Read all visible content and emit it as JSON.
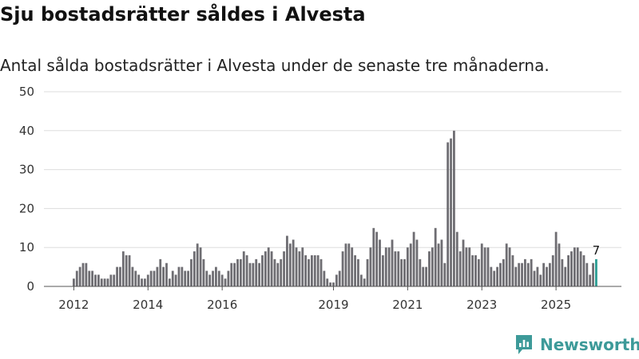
{
  "header": {
    "title": "Sju bostadsrätter såldes i Alvesta",
    "subtitle": "Antal sålda bostadsrätter i Alvesta under de senaste tre månaderna."
  },
  "brand": {
    "name": "Newsworthy",
    "color": "#3d9a99"
  },
  "colors": {
    "bar": "#6e6d72",
    "highlight": "#2a9d93",
    "grid": "#dddddd",
    "axis": "#555555"
  },
  "chart_data": {
    "type": "bar",
    "title": "Sju bostadsrätter såldes i Alvesta",
    "subtitle": "Antal sålda bostadsrätter i Alvesta under de senaste tre månaderna.",
    "xlabel": "",
    "ylabel": "",
    "ylim": [
      0,
      50
    ],
    "yticks": [
      0,
      10,
      20,
      30,
      40,
      50
    ],
    "grid": true,
    "start": "2012-01",
    "interval": "month",
    "xtick_labels": [
      {
        "label": "2012",
        "index": 0
      },
      {
        "label": "2014",
        "index": 24
      },
      {
        "label": "2016",
        "index": 48
      },
      {
        "label": "2019",
        "index": 84
      },
      {
        "label": "2021",
        "index": 108
      },
      {
        "label": "2023",
        "index": 132
      },
      {
        "label": "2025",
        "index": 156
      }
    ],
    "values": [
      2,
      4,
      5,
      6,
      6,
      4,
      4,
      3,
      3,
      2,
      2,
      2,
      3,
      3,
      5,
      5,
      9,
      8,
      8,
      5,
      4,
      3,
      2,
      2,
      3,
      4,
      4,
      5,
      7,
      5,
      6,
      2,
      4,
      3,
      5,
      5,
      4,
      4,
      7,
      9,
      11,
      10,
      7,
      4,
      3,
      4,
      5,
      4,
      3,
      2,
      4,
      6,
      6,
      7,
      7,
      9,
      8,
      6,
      6,
      7,
      6,
      8,
      9,
      10,
      9,
      7,
      6,
      7,
      9,
      13,
      11,
      12,
      10,
      9,
      10,
      8,
      7,
      8,
      8,
      8,
      7,
      4,
      2,
      1,
      1,
      3,
      4,
      9,
      11,
      11,
      10,
      8,
      7,
      3,
      2,
      7,
      10,
      15,
      14,
      12,
      8,
      10,
      10,
      12,
      9,
      9,
      7,
      7,
      10,
      11,
      14,
      12,
      7,
      5,
      5,
      9,
      10,
      15,
      11,
      12,
      6,
      37,
      38,
      40,
      14,
      9,
      12,
      10,
      10,
      8,
      8,
      7,
      11,
      10,
      10,
      5,
      4,
      5,
      6,
      7,
      11,
      10,
      8,
      5,
      6,
      6,
      7,
      6,
      7,
      4,
      5,
      3,
      6,
      5,
      6,
      8,
      14,
      11,
      7,
      5,
      8,
      9,
      10,
      10,
      9,
      8,
      6,
      3,
      6,
      7
    ],
    "highlight_last": true,
    "annotation": {
      "text": "7",
      "index": 169
    }
  }
}
